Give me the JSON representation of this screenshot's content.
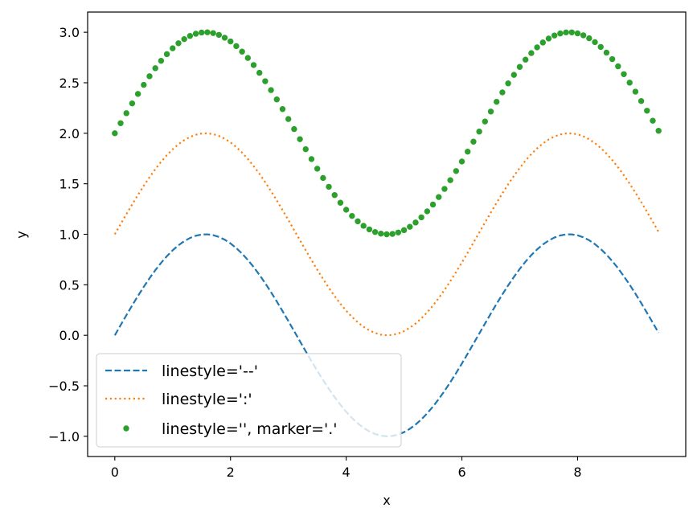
{
  "chart_data": {
    "type": "line",
    "title": "",
    "xlabel": "x",
    "ylabel": "y",
    "xlim": [
      -0.47,
      9.87
    ],
    "ylim": [
      -1.2,
      3.2
    ],
    "x_ticks": [
      0,
      2,
      4,
      6,
      8
    ],
    "x_tick_labels": [
      "0",
      "2",
      "4",
      "6",
      "8"
    ],
    "y_ticks": [
      -1.0,
      -0.5,
      0.0,
      0.5,
      1.0,
      1.5,
      2.0,
      2.5,
      3.0
    ],
    "y_tick_labels": [
      "−1.0",
      "−0.5",
      "0.0",
      "0.5",
      "1.0",
      "1.5",
      "2.0",
      "2.5",
      "3.0"
    ],
    "grid": false,
    "legend_position": "lower-left",
    "x": {
      "start": 0,
      "end": 9.4,
      "step": 0.1
    },
    "series": [
      {
        "name": "linestyle='--'",
        "function": "sin(x)",
        "offset": 0,
        "color": "#1f77b4",
        "linestyle": "dashed",
        "marker": "none"
      },
      {
        "name": "linestyle=':'",
        "function": "sin(x) + 1",
        "offset": 1,
        "color": "#ff7f0e",
        "linestyle": "dotted",
        "marker": "none"
      },
      {
        "name": "linestyle='', marker='.'",
        "function": "sin(x) + 2",
        "offset": 2,
        "color": "#2ca02c",
        "linestyle": "none",
        "marker": "point"
      }
    ]
  }
}
